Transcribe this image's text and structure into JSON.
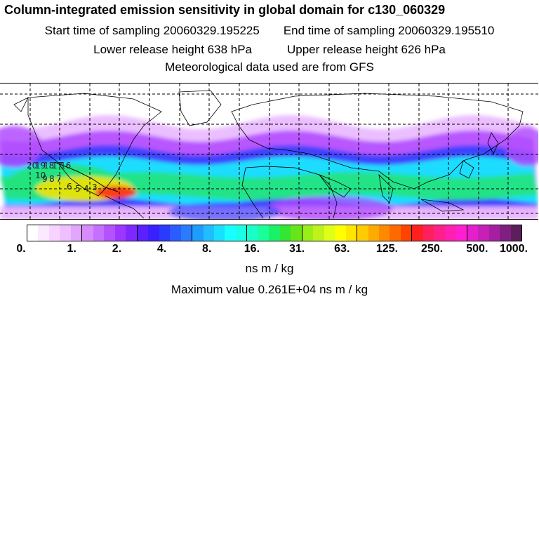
{
  "header": {
    "title": "Column-integrated emission sensitivity in global domain for c130_060329",
    "start_label": "Start time of sampling 20060329.195225",
    "end_label": "End time of sampling 20060329.195510",
    "lower_label": "Lower release height  638 hPa",
    "upper_label": "Upper release height  626 hPa",
    "met_label": "Meteorological data used are from GFS"
  },
  "map": {
    "track_labels": [
      "20",
      "19",
      "18",
      "17",
      "16",
      "10",
      "9",
      "8",
      "7",
      "6",
      "5",
      "4",
      "3"
    ],
    "band_colors": {
      "light": "#e9b8ff",
      "violet": "#b24dff",
      "blue": "#2a3fff",
      "cyan": "#19e6ff",
      "green": "#21e37a",
      "yellow": "#f2e200",
      "red": "#ff2a1a"
    }
  },
  "colorbar": {
    "colors": [
      "#ffffff",
      "#fce9ff",
      "#f6d4ff",
      "#efbfff",
      "#e3a6ff",
      "#d68cff",
      "#c570ff",
      "#b452ff",
      "#9e36ff",
      "#7e28ff",
      "#5c1fff",
      "#3a1fff",
      "#2a3aff",
      "#2a5cff",
      "#2a7cff",
      "#1f9dff",
      "#1fbfff",
      "#19e0ff",
      "#19ffff",
      "#19ffe6",
      "#19ffc8",
      "#19ff99",
      "#19f266",
      "#33e633",
      "#66e619",
      "#99ee19",
      "#bff219",
      "#dfff19",
      "#ffff00",
      "#ffe600",
      "#ffcc00",
      "#ffaa00",
      "#ff8a00",
      "#ff6a00",
      "#ff4400",
      "#ff1f1f",
      "#ff1f5c",
      "#ff1f88",
      "#ff1fb0",
      "#ff1fd0",
      "#e61fcc",
      "#c71fb8",
      "#a61fa0",
      "#801f80",
      "#5c1f5c"
    ],
    "tick_labels": [
      "0.",
      "1.",
      "2.",
      "4.",
      "8.",
      "16.",
      "31.",
      "63.",
      "125.",
      "250.",
      "500.",
      "1000."
    ],
    "units": "ns m / kg",
    "max_label": "Maximum value  0.261E+04 ns m / kg"
  }
}
